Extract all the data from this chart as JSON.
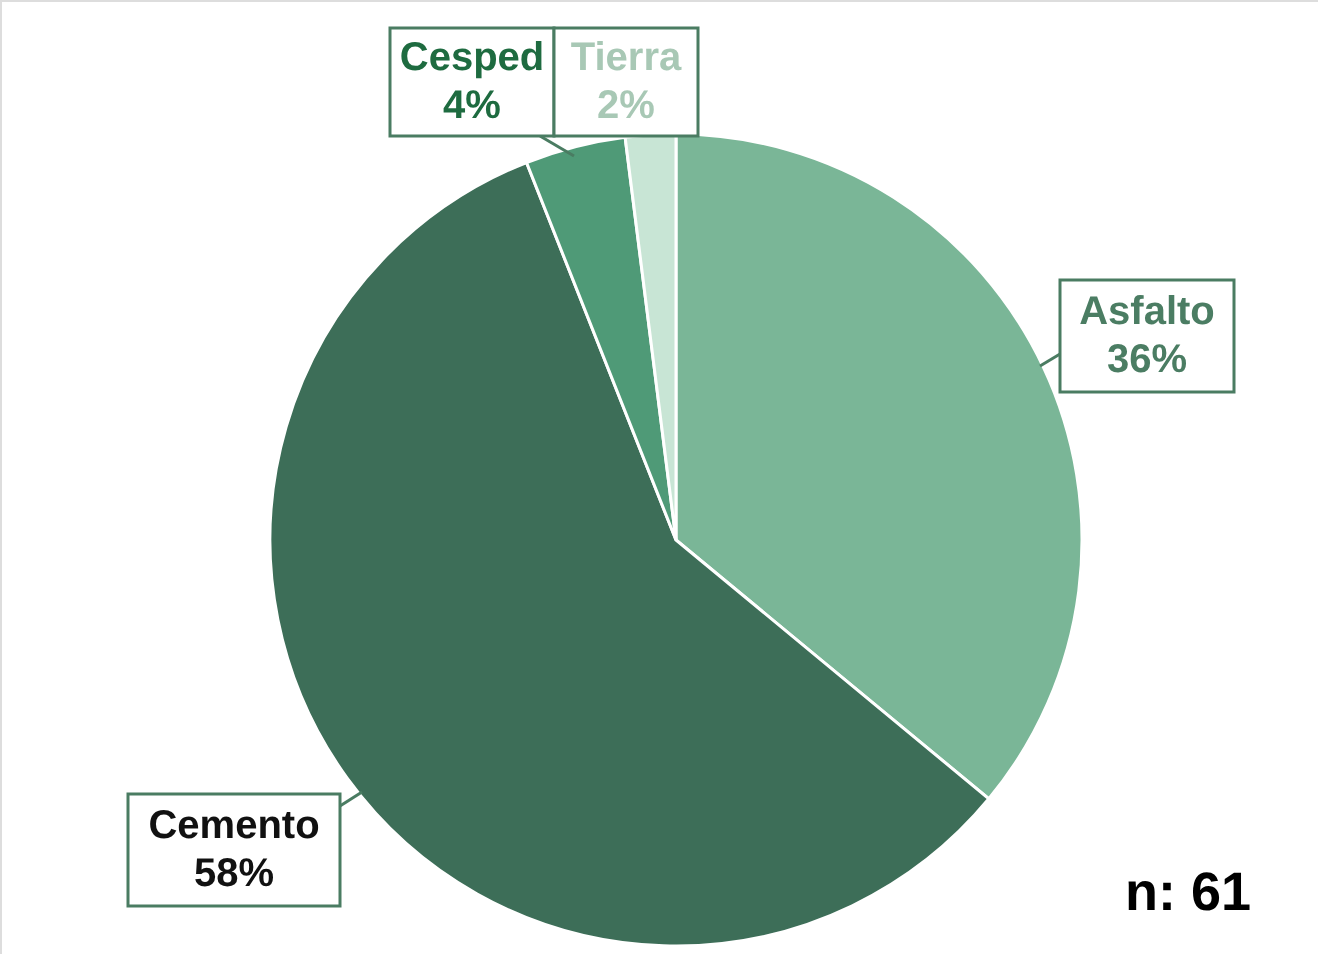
{
  "chart_data": {
    "type": "pie",
    "categories": [
      "Asfalto",
      "Cemento",
      "Cesped",
      "Tierra"
    ],
    "values": [
      36,
      58,
      4,
      2
    ],
    "colors": [
      "#7ab697",
      "#3d6e58",
      "#4f9a77",
      "#c8e5d5"
    ],
    "value_labels": [
      "36%",
      "58%",
      "4%",
      "2%"
    ],
    "annotations": [
      "n: 61"
    ]
  }
}
